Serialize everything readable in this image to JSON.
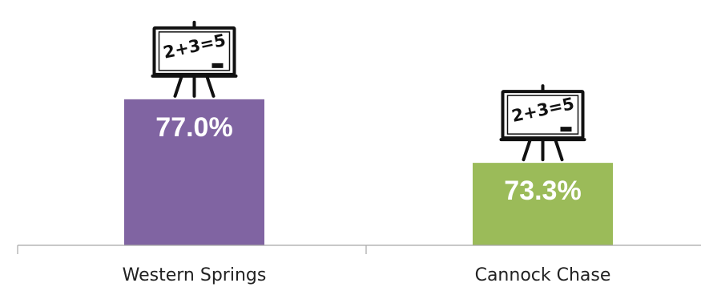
{
  "chart_data": {
    "type": "bar",
    "categories": [
      "Western Springs",
      "Cannock Chase"
    ],
    "values": [
      77.0,
      73.3
    ],
    "value_labels": [
      "77.0%",
      "73.3%"
    ],
    "colors": [
      "#8064A2",
      "#9BBB59"
    ],
    "title": "",
    "xlabel": "",
    "ylabel": "",
    "ylim": [
      68.5,
      78.0
    ],
    "grid": false,
    "legend": "none",
    "icon": "blackboard-icon",
    "icon_text": "2+3=5"
  }
}
